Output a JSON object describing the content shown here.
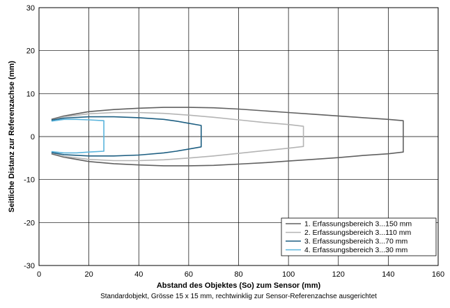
{
  "chart_data": {
    "type": "line",
    "xlabel": "Abstand des Objektes (So) zum Sensor (mm)",
    "ylabel": "Seitliche Distanz zur Referenzachse (mm)",
    "caption": "Standardobjekt, Grösse 15 x 15 mm, rechtwinklig zur Sensor-Referenzachse ausgerichtet",
    "xlim": [
      0,
      160
    ],
    "ylim": [
      -30,
      30
    ],
    "x_ticks": [
      0,
      20,
      40,
      60,
      80,
      100,
      120,
      140,
      160
    ],
    "y_ticks": [
      30,
      20,
      10,
      0,
      -10,
      -20,
      -30
    ],
    "grid": true,
    "legend_position": "bottom-right",
    "series": [
      {
        "name": "1. Erfassungsbereich 3...150 mm",
        "color": "#606060",
        "x": [
          5,
          10,
          20,
          30,
          40,
          50,
          60,
          70,
          80,
          90,
          100,
          110,
          120,
          130,
          140,
          146,
          146,
          140,
          130,
          120,
          110,
          100,
          90,
          80,
          70,
          60,
          50,
          40,
          30,
          20,
          10,
          5
        ],
        "y": [
          4.0,
          4.8,
          5.8,
          6.3,
          6.6,
          6.8,
          6.8,
          6.7,
          6.4,
          6.0,
          5.6,
          5.2,
          4.8,
          4.4,
          4.0,
          3.7,
          -3.6,
          -4.0,
          -4.4,
          -4.9,
          -5.3,
          -5.7,
          -6.1,
          -6.4,
          -6.7,
          -6.8,
          -6.8,
          -6.6,
          -6.3,
          -5.8,
          -4.8,
          -4.0
        ]
      },
      {
        "name": "2. Erfassungsbereich 3...110 mm",
        "color": "#b4b4b4",
        "x": [
          5,
          10,
          20,
          30,
          40,
          50,
          60,
          70,
          80,
          90,
          100,
          106,
          106,
          100,
          90,
          80,
          70,
          60,
          50,
          40,
          30,
          20,
          10,
          5
        ],
        "y": [
          3.8,
          4.6,
          5.3,
          5.6,
          5.6,
          5.4,
          5.0,
          4.5,
          3.9,
          3.3,
          2.8,
          2.4,
          -2.3,
          -2.7,
          -3.3,
          -3.9,
          -4.5,
          -5.0,
          -5.4,
          -5.6,
          -5.6,
          -5.3,
          -4.6,
          -3.8
        ]
      },
      {
        "name": "3. Erfassungsbereich 3...70 mm",
        "color": "#1e5f82",
        "x": [
          5,
          10,
          20,
          30,
          40,
          50,
          55,
          60,
          65,
          65,
          60,
          55,
          50,
          40,
          30,
          20,
          10,
          5
        ],
        "y": [
          3.8,
          4.3,
          4.6,
          4.6,
          4.4,
          4.0,
          3.6,
          3.1,
          2.6,
          -2.4,
          -2.9,
          -3.4,
          -3.8,
          -4.3,
          -4.5,
          -4.5,
          -4.2,
          -3.7
        ]
      },
      {
        "name": "4. Erfassungsbereich 3...30 mm",
        "color": "#5ab4dc",
        "x": [
          5,
          10,
          15,
          20,
          26,
          26,
          20,
          15,
          10,
          5
        ],
        "y": [
          3.6,
          4.0,
          4.0,
          3.9,
          3.7,
          -3.4,
          -3.6,
          -3.8,
          -3.8,
          -3.5
        ]
      }
    ]
  }
}
